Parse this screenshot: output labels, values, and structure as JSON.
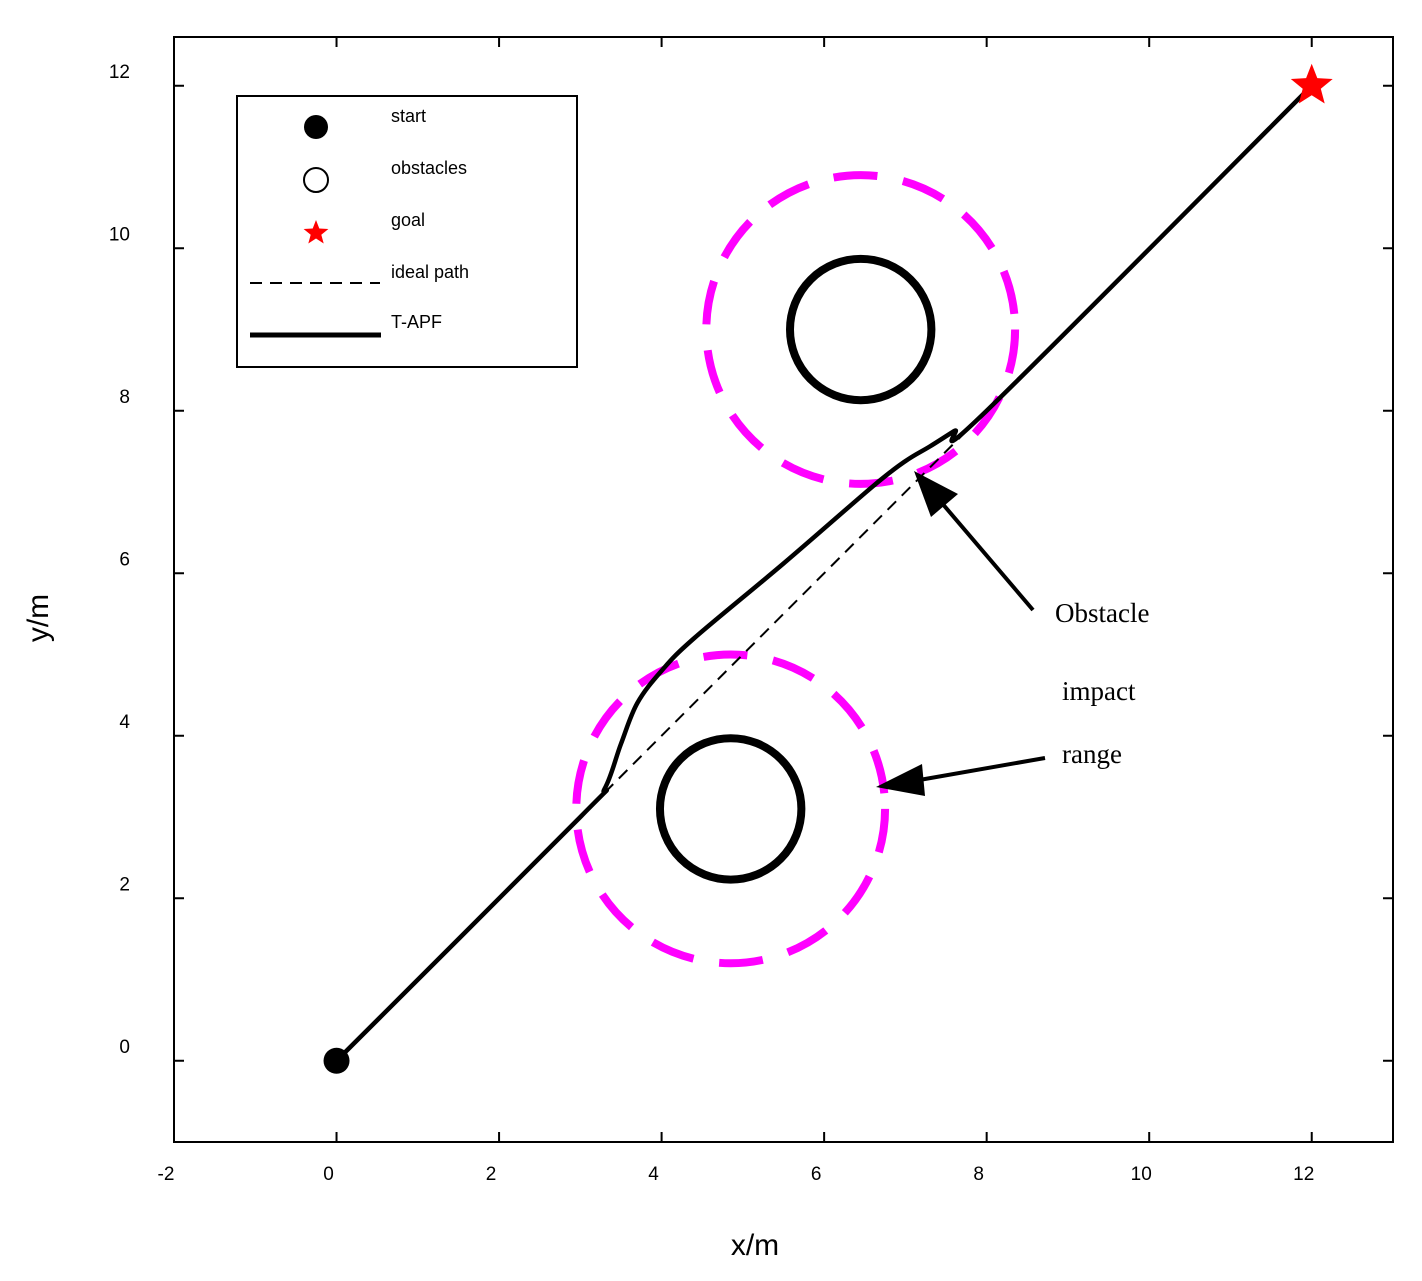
{
  "chart_data": {
    "type": "line",
    "title": "",
    "xlabel": "x/m",
    "ylabel": "y/m",
    "xlim": [
      -2,
      13
    ],
    "ylim": [
      -1,
      12.6
    ],
    "xticks": [
      -2,
      0,
      2,
      4,
      6,
      8,
      10,
      12
    ],
    "yticks": [
      0,
      2,
      4,
      6,
      8,
      10,
      12
    ],
    "grid": false,
    "legend_position": "top-left",
    "legend": [
      {
        "label": "start",
        "marker": "filled-circle"
      },
      {
        "label": "obstacles",
        "marker": "open-circle"
      },
      {
        "label": "goal",
        "marker": "red-star"
      },
      {
        "label": "ideal path",
        "marker": "dashed-line"
      },
      {
        "label": "T-APF",
        "marker": "solid-line"
      }
    ],
    "start": {
      "x": 0,
      "y": 0
    },
    "goal": {
      "x": 12,
      "y": 12
    },
    "obstacles": [
      {
        "x": 4.85,
        "y": 3.1,
        "radius": 0.87,
        "impact_radius": 1.9
      },
      {
        "x": 6.45,
        "y": 9.0,
        "radius": 0.87,
        "impact_radius": 1.9
      }
    ],
    "series": [
      {
        "name": "ideal path",
        "style": "dashed",
        "x": [
          3.3,
          8.0
        ],
        "y": [
          3.3,
          8.0
        ]
      },
      {
        "name": "T-APF",
        "style": "solid",
        "x": [
          0,
          3.0,
          3.3,
          3.5,
          3.7,
          4.0,
          4.4,
          5.5,
          6.6,
          7.0,
          7.3,
          7.6,
          8.0,
          12.0
        ],
        "y": [
          0,
          3.0,
          3.35,
          3.9,
          4.4,
          4.8,
          5.2,
          6.12,
          7.07,
          7.38,
          7.56,
          7.75,
          8.0,
          12.0
        ]
      }
    ],
    "annotations": {
      "words": [
        "Obstacle",
        "impact",
        "range"
      ]
    },
    "colors": {
      "impact_range": "#ff00ff",
      "goal": "#ff0000",
      "line": "#000000"
    }
  }
}
